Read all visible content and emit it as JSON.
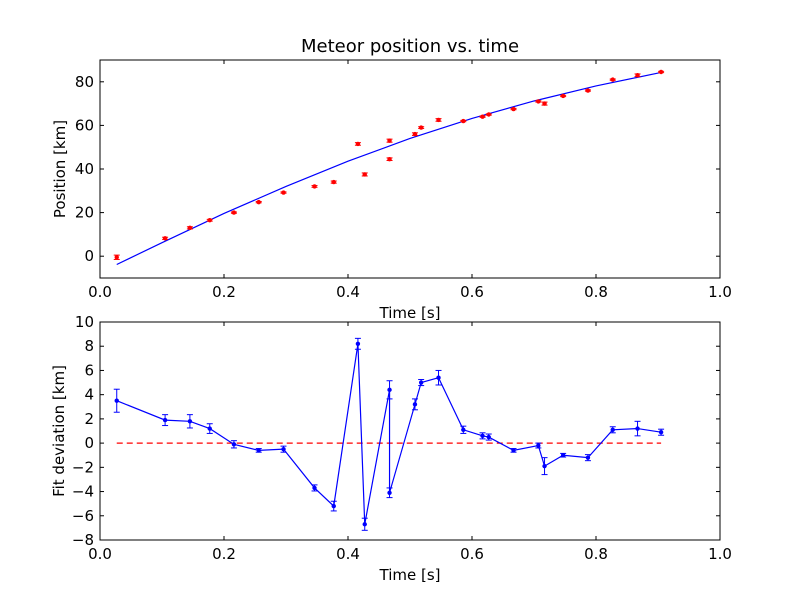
{
  "chart_data": [
    {
      "type": "scatter",
      "title": "Meteor position vs. time",
      "xlabel": "Time [s]",
      "ylabel": "Position [km]",
      "xlim": [
        0.0,
        1.0
      ],
      "ylim": [
        -10,
        90
      ],
      "xticks": [
        "0.0",
        "0.2",
        "0.4",
        "0.6",
        "0.8",
        "1.0"
      ],
      "yticks": [
        "0",
        "20",
        "40",
        "60",
        "80"
      ],
      "grid": false,
      "colors": {
        "points": "#ff0000",
        "fit": "#0000ff"
      },
      "series": [
        {
          "kind": "points-with-errorbars",
          "x": [
            0.027,
            0.105,
            0.145,
            0.177,
            0.216,
            0.256,
            0.296,
            0.346,
            0.377,
            0.416,
            0.427,
            0.467,
            0.467,
            0.508,
            0.518,
            0.546,
            0.586,
            0.617,
            0.627,
            0.667,
            0.707,
            0.717,
            0.747,
            0.787,
            0.827,
            0.867,
            0.905
          ],
          "y": [
            -0.5,
            8.2,
            13.0,
            16.5,
            20.0,
            24.8,
            29.2,
            32.0,
            34.0,
            51.5,
            37.5,
            53.0,
            44.5,
            56.0,
            59.0,
            62.5,
            62.0,
            64.0,
            65.0,
            67.5,
            71.0,
            70.0,
            73.5,
            76.0,
            81.0,
            83.0,
            84.5
          ],
          "yerr": [
            1.0,
            0.5,
            0.5,
            0.4,
            0.3,
            0.3,
            0.3,
            0.4,
            0.5,
            0.6,
            0.7,
            0.7,
            0.6,
            0.6,
            0.4,
            0.6,
            0.3,
            0.3,
            0.3,
            0.3,
            0.3,
            0.7,
            0.3,
            0.3,
            0.3,
            0.6,
            0.3
          ]
        },
        {
          "kind": "fit-line",
          "x": [
            0.027,
            0.1,
            0.2,
            0.3,
            0.4,
            0.5,
            0.6,
            0.7,
            0.8,
            0.905
          ],
          "y": [
            -3.8,
            6.2,
            19.6,
            32.0,
            43.6,
            54.0,
            63.2,
            71.2,
            78.1,
            84.3
          ]
        }
      ]
    },
    {
      "type": "line",
      "xlabel": "Time [s]",
      "ylabel": "Fit deviation [km]",
      "xlim": [
        0.0,
        1.0
      ],
      "ylim": [
        -8,
        10
      ],
      "xticks": [
        "0.0",
        "0.2",
        "0.4",
        "0.6",
        "0.8",
        "1.0"
      ],
      "yticks": [
        "−8",
        "−6",
        "−4",
        "−2",
        "0",
        "2",
        "4",
        "6",
        "8",
        "10"
      ],
      "grid": false,
      "colors": {
        "line": "#0000ff",
        "zero": "#ff0000"
      },
      "reference_line": {
        "y": 0,
        "style": "dashed"
      },
      "series": [
        {
          "x": [
            0.027,
            0.105,
            0.145,
            0.177,
            0.216,
            0.256,
            0.296,
            0.346,
            0.377,
            0.416,
            0.427,
            0.467,
            0.467,
            0.508,
            0.518,
            0.546,
            0.586,
            0.617,
            0.627,
            0.667,
            0.707,
            0.717,
            0.747,
            0.787,
            0.827,
            0.867,
            0.905
          ],
          "y": [
            3.5,
            1.9,
            1.8,
            1.2,
            -0.1,
            -0.6,
            -0.5,
            -3.7,
            -5.2,
            8.2,
            -6.7,
            4.4,
            -4.1,
            3.2,
            5.0,
            5.4,
            1.1,
            0.6,
            0.5,
            -0.6,
            -0.2,
            -1.9,
            -1.0,
            -1.2,
            1.1,
            1.2,
            0.9
          ],
          "yerr": [
            0.95,
            0.45,
            0.55,
            0.4,
            0.3,
            0.15,
            0.25,
            0.25,
            0.4,
            0.45,
            0.5,
            0.75,
            0.4,
            0.45,
            0.25,
            0.6,
            0.3,
            0.25,
            0.25,
            0.15,
            0.2,
            0.7,
            0.15,
            0.25,
            0.25,
            0.6,
            0.25
          ]
        }
      ]
    }
  ]
}
